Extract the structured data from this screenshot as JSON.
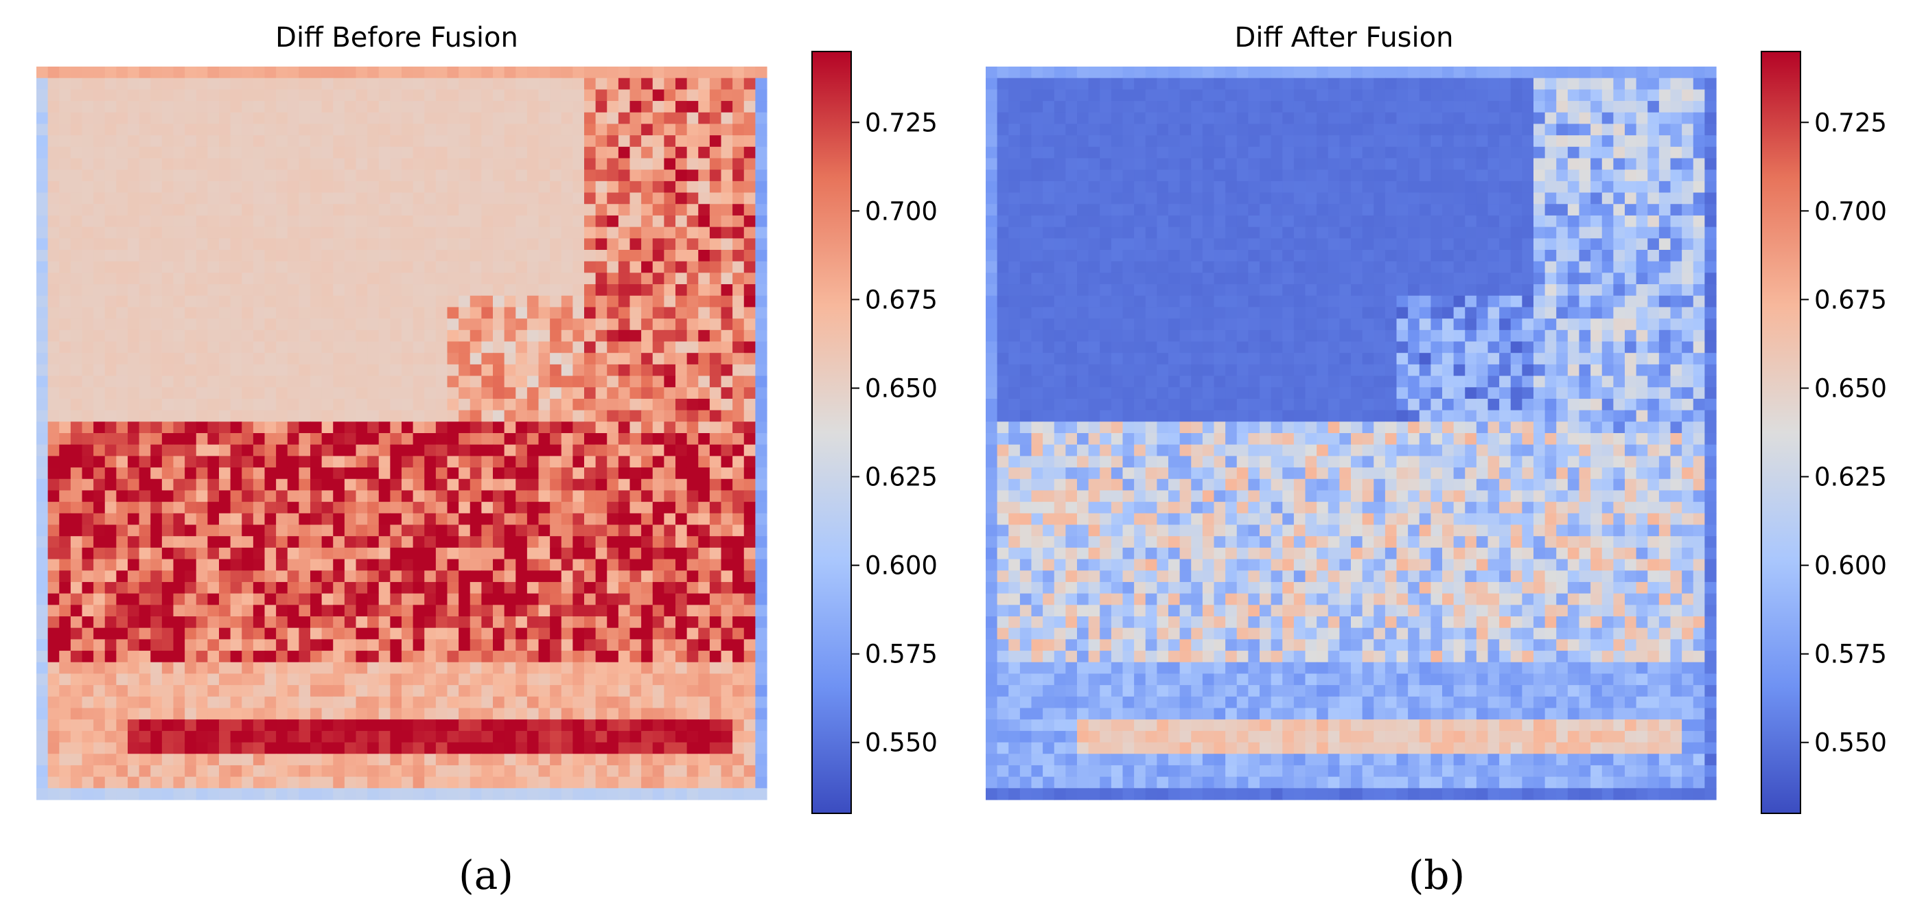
{
  "panels": [
    {
      "title": "Diff Before Fusion",
      "caption": "(a)"
    },
    {
      "title": "Diff After Fusion",
      "caption": "(b)"
    }
  ],
  "colormap": {
    "name": "coolwarm",
    "stops": [
      "#3b4cc0",
      "#6f92f3",
      "#aac7fd",
      "#dddddd",
      "#f7b89c",
      "#e7745b",
      "#b40426"
    ]
  },
  "chart_data": [
    {
      "type": "heatmap",
      "title": "Diff Before Fusion",
      "grid": [
        64,
        64
      ],
      "xlabel": "",
      "ylabel": "",
      "colorbar": {
        "range": [
          0.53,
          0.745
        ],
        "ticks": [
          0.55,
          0.575,
          0.6,
          0.625,
          0.65,
          0.675,
          0.7,
          0.725
        ],
        "tick_labels": [
          "0.550",
          "0.575",
          "0.600",
          "0.625",
          "0.650",
          "0.675",
          "0.700",
          "0.725"
        ]
      },
      "region_values": {
        "sky": 0.655,
        "top_edge": 0.68,
        "left_edge": 0.61,
        "right_edge": 0.58,
        "bottom_edge": 0.615,
        "buildings_right": 0.7,
        "cars_band": 0.72,
        "road": 0.675,
        "road_stripe": 0.74
      },
      "approximate": true
    },
    {
      "type": "heatmap",
      "title": "Diff After Fusion",
      "grid": [
        64,
        64
      ],
      "xlabel": "",
      "ylabel": "",
      "colorbar": {
        "range": [
          0.53,
          0.745
        ],
        "ticks": [
          0.55,
          0.575,
          0.6,
          0.625,
          0.65,
          0.675,
          0.7,
          0.725
        ],
        "tick_labels": [
          "0.550",
          "0.575",
          "0.600",
          "0.625",
          "0.650",
          "0.675",
          "0.700",
          "0.725"
        ]
      },
      "region_values": {
        "sky": 0.55,
        "top_edge": 0.58,
        "left_edge": 0.575,
        "right_edge": 0.555,
        "bottom_edge": 0.55,
        "buildings_right": 0.6,
        "cars_band": 0.625,
        "road": 0.585,
        "road_stripe": 0.66
      },
      "approximate": true
    }
  ]
}
